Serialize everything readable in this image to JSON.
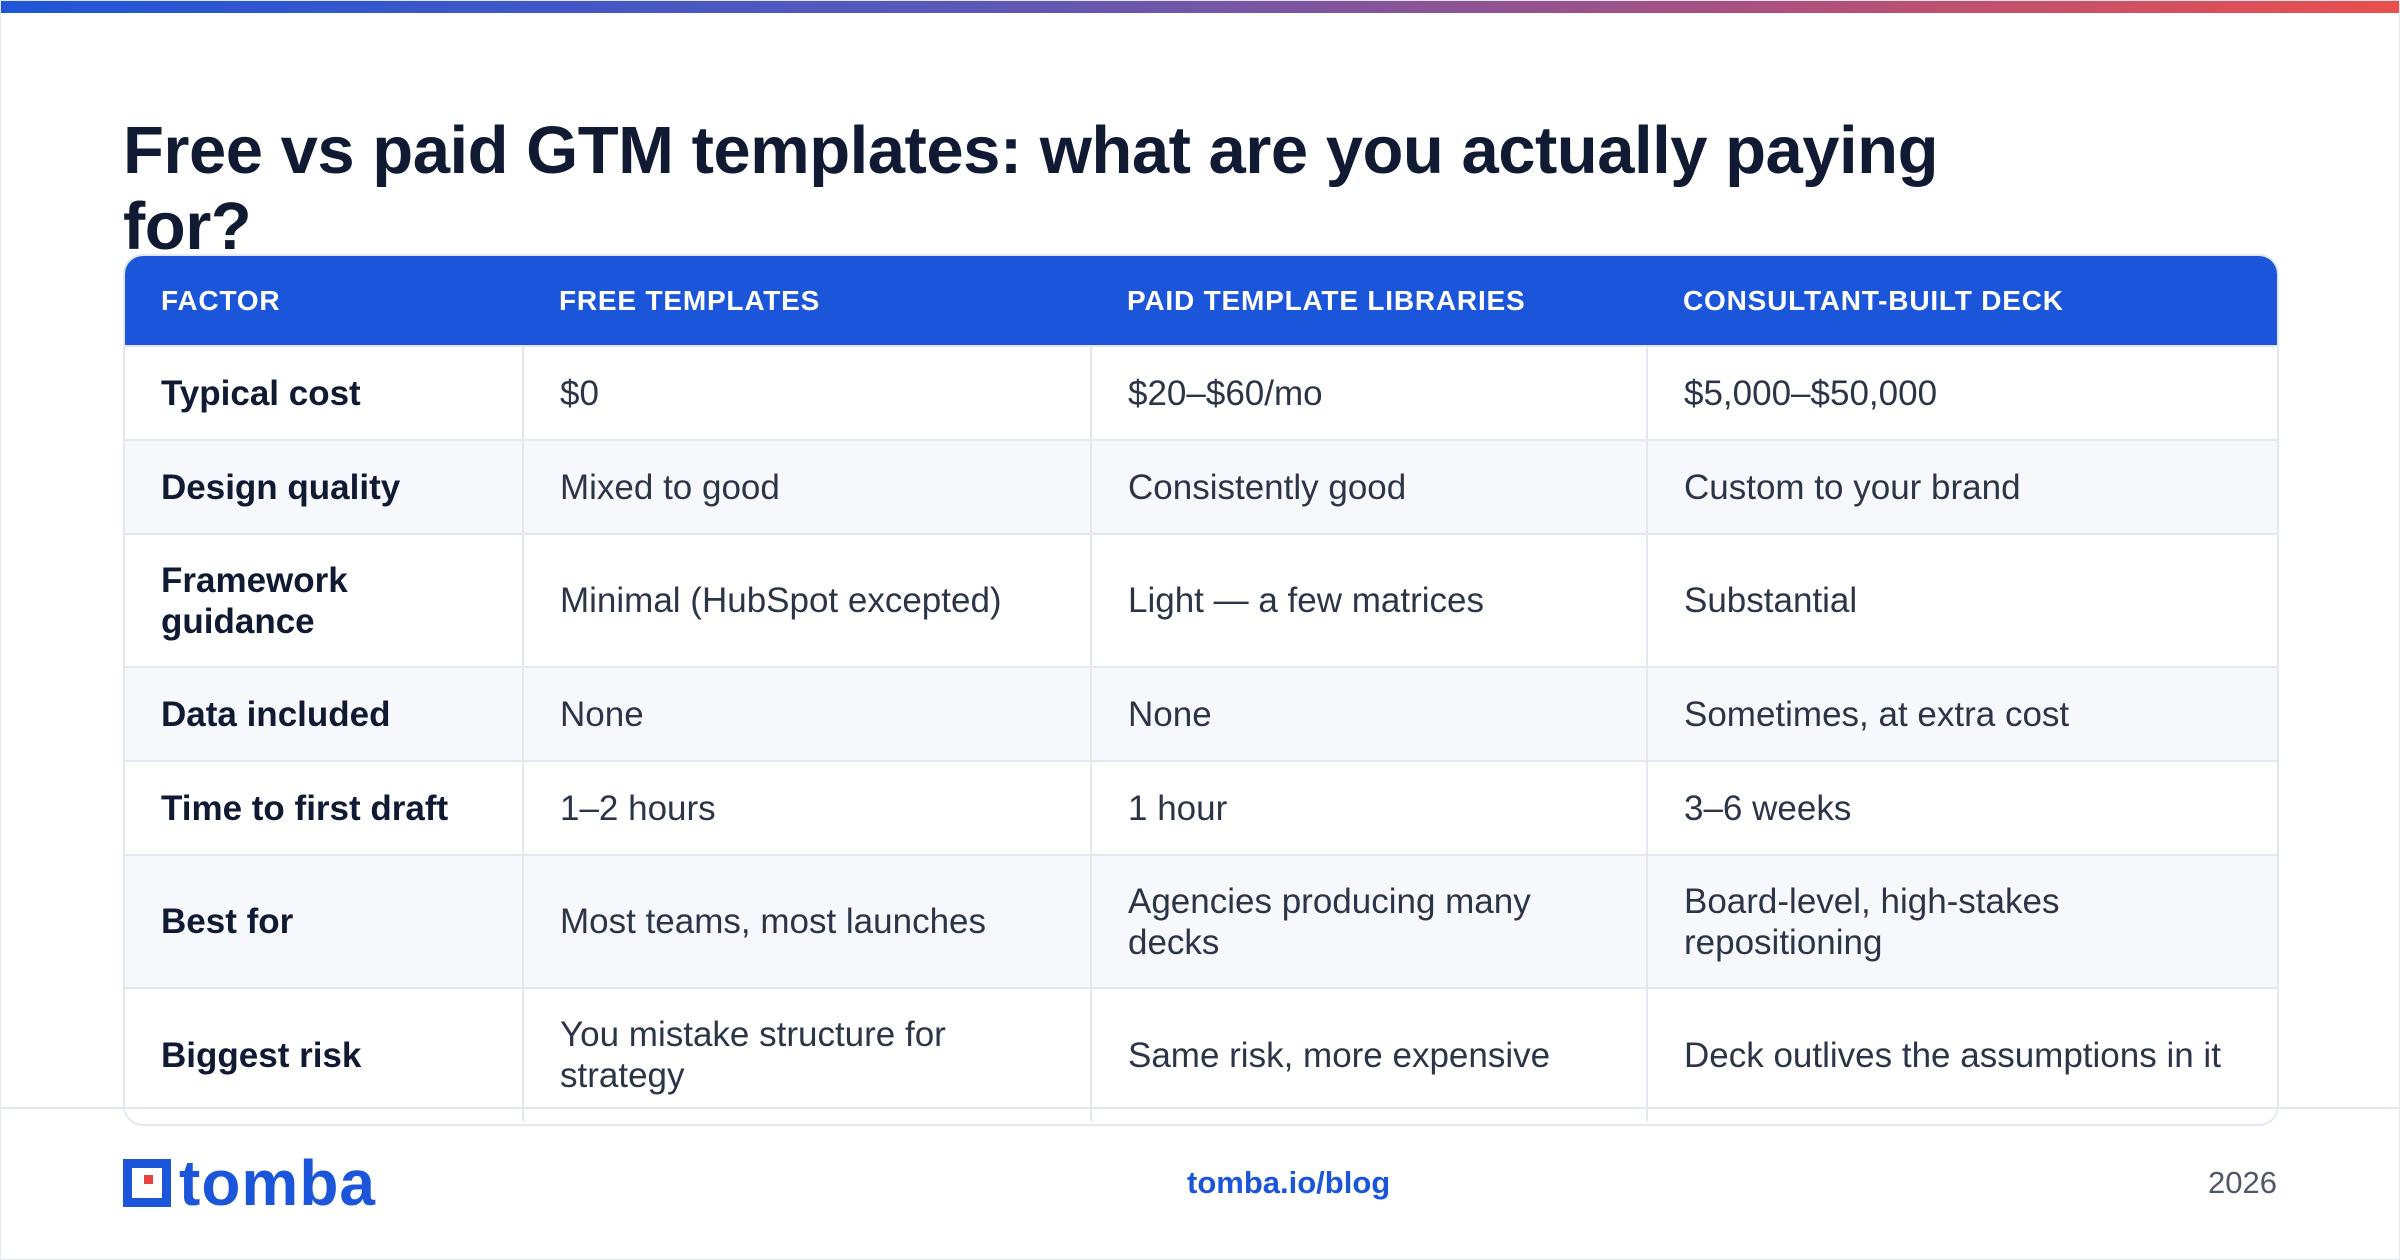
{
  "title": "Free vs paid GTM templates: what are you actually paying for?",
  "colors": {
    "accent": "#1b56da",
    "logo_accent": "#e8423f",
    "gradient_start": "#1f56d8",
    "gradient_end": "#ea4f4c"
  },
  "table": {
    "headers": [
      "FACTOR",
      "FREE TEMPLATES",
      "PAID TEMPLATE LIBRARIES",
      "CONSULTANT-BUILT DECK"
    ],
    "rows": [
      [
        "Typical cost",
        "$0",
        "$20–$60/mo",
        "$5,000–$50,000"
      ],
      [
        "Design quality",
        "Mixed to good",
        "Consistently good",
        "Custom to your brand"
      ],
      [
        "Framework guidance",
        "Minimal (HubSpot excepted)",
        "Light — a few matrices",
        "Substantial"
      ],
      [
        "Data included",
        "None",
        "None",
        "Sometimes, at extra cost"
      ],
      [
        "Time to first draft",
        "1–2 hours",
        "1 hour",
        "3–6 weeks"
      ],
      [
        "Best for",
        "Most teams, most launches",
        "Agencies producing many decks",
        "Board-level, high-stakes repositioning"
      ],
      [
        "Biggest risk",
        "You mistake structure for strategy",
        "Same risk, more expensive",
        "Deck outlives the assumptions in it"
      ]
    ]
  },
  "footer": {
    "logo_text": "tomba",
    "logo_icon": "tomba-logo-icon",
    "link": "tomba.io/blog",
    "year": "2026"
  }
}
